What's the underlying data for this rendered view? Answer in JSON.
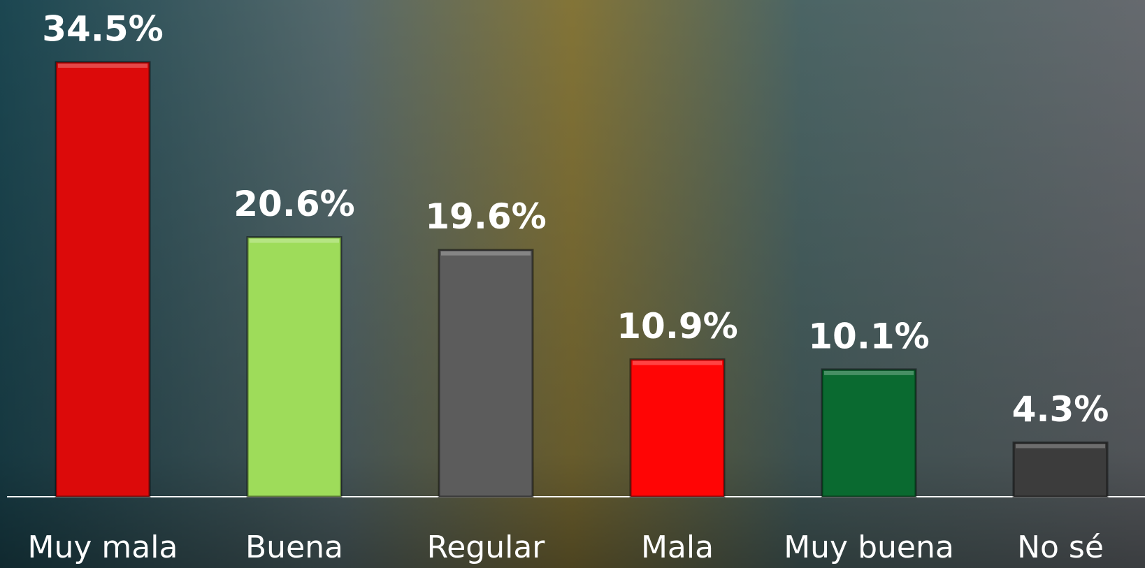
{
  "chart_data": {
    "type": "bar",
    "categories": [
      "Muy mala",
      "Buena",
      "Regular",
      "Mala",
      "Muy buena",
      "No sé"
    ],
    "values": [
      34.5,
      20.6,
      19.6,
      10.9,
      10.1,
      4.3
    ],
    "value_labels": [
      "34.5%",
      "20.6%",
      "19.6%",
      "10.9%",
      "10.1%",
      "4.3%"
    ],
    "colors": [
      "#dc0a0a",
      "#9edc5a",
      "#5c5c5c",
      "#ff0505",
      "#0a6a30",
      "#3c3c3c"
    ]
  }
}
